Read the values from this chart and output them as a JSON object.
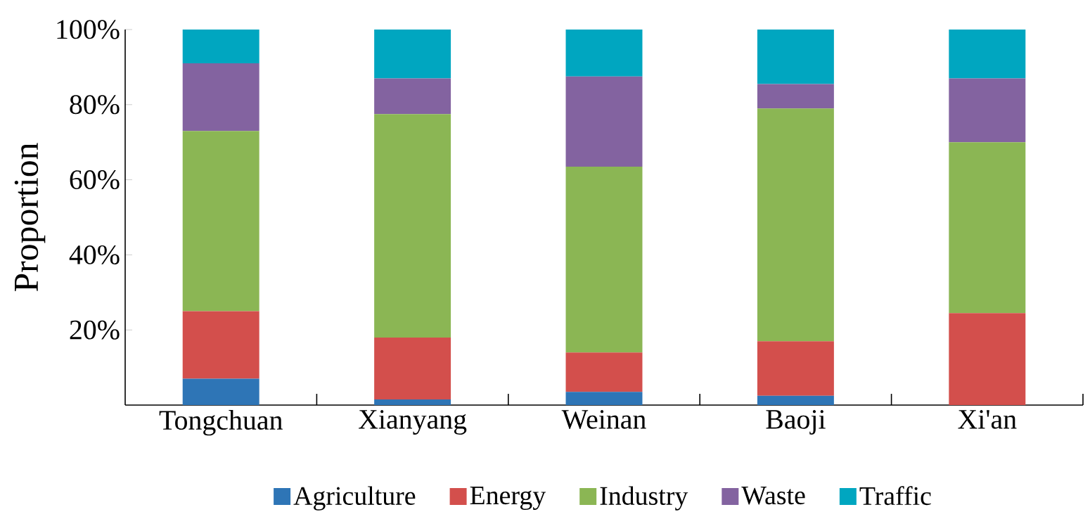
{
  "chart_data": {
    "type": "bar",
    "stacked": true,
    "ylabel": "Proportion",
    "categories": [
      "Tongchuan",
      "Xianyang",
      "Weinan",
      "Baoji",
      "Xi'an"
    ],
    "series": [
      {
        "name": "Agriculture",
        "color": "#2e75b6",
        "values": [
          7,
          1.5,
          3.5,
          2.5,
          0
        ]
      },
      {
        "name": "Energy",
        "color": "#d34f4c",
        "values": [
          18,
          16.5,
          10.5,
          14.5,
          24.5
        ]
      },
      {
        "name": "Industry",
        "color": "#8bb654",
        "values": [
          48,
          59.5,
          49.5,
          62,
          45.5
        ]
      },
      {
        "name": "Waste",
        "color": "#8363a0",
        "values": [
          18,
          9.5,
          24,
          6.5,
          17
        ]
      },
      {
        "name": "Traffic",
        "color": "#00a6c0",
        "values": [
          9,
          13,
          12.5,
          14.5,
          13
        ]
      }
    ],
    "ylim": [
      0,
      100
    ],
    "yticks": [
      {
        "value": 20,
        "label": "20%"
      },
      {
        "value": 40,
        "label": "40%"
      },
      {
        "value": 60,
        "label": "60%"
      },
      {
        "value": 80,
        "label": "80%"
      },
      {
        "value": 100,
        "label": "100%"
      }
    ],
    "legend": "bottom"
  }
}
